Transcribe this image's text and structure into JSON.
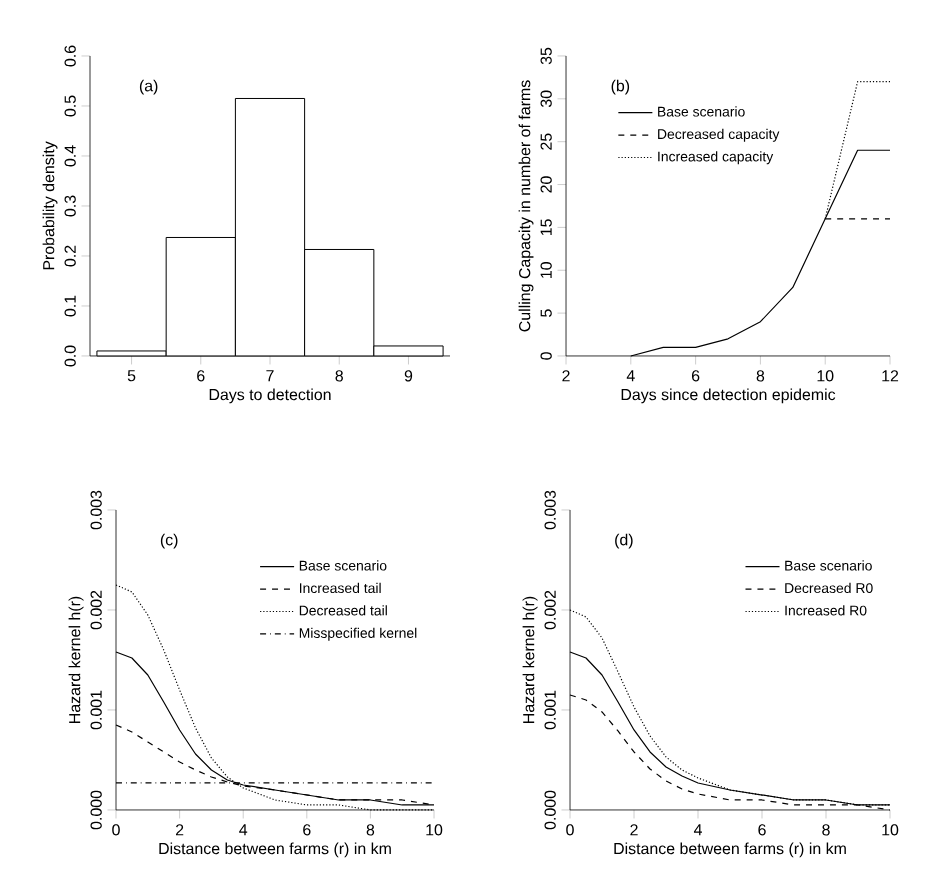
{
  "chart_data": [
    {
      "type": "histogram",
      "xlabel": "Days to detection",
      "ylabel": "Probability density",
      "annotations": [
        "(a)"
      ],
      "bins": [
        4.5,
        5.5,
        6.5,
        7.5,
        8.5,
        9.5
      ],
      "values": [
        0.01,
        0.237,
        0.515,
        0.213,
        0.02
      ],
      "color": "#ffffff",
      "xlim": [
        4.4,
        9.6
      ],
      "xticks": [
        5,
        6,
        7,
        8,
        9
      ],
      "ylim": [
        0,
        0.6
      ],
      "yticks": [
        {
          "value": 0,
          "label": "0.0"
        },
        0.1,
        0.2,
        0.3,
        0.4,
        0.5,
        0.6
      ]
    },
    {
      "type": "line",
      "xlabel": "Days since detection epidemic",
      "ylabel": "Culling Capacity in number of farms",
      "annotations": [
        "(b)"
      ],
      "series": [
        {
          "name": "Base scenario",
          "color": "#000000",
          "line_style": "solid",
          "x": [
            4,
            5,
            6,
            7,
            8,
            9,
            10,
            11,
            12
          ],
          "values": [
            0,
            1,
            1,
            2,
            4,
            8,
            16,
            24,
            24
          ]
        },
        {
          "name": "Decreased capacity",
          "color": "#000000",
          "line_style": "dashed",
          "x": [
            10,
            11,
            12
          ],
          "values": [
            16,
            16,
            16
          ]
        },
        {
          "name": "Increased capacity",
          "color": "#000000",
          "line_style": "dotted",
          "x": [
            10,
            11,
            12
          ],
          "values": [
            16,
            32,
            32
          ]
        }
      ],
      "xlim": [
        2,
        12
      ],
      "xticks": [
        2,
        4,
        6,
        8,
        10,
        12
      ],
      "ylim": [
        0,
        35
      ],
      "yticks": [
        0,
        5,
        10,
        15,
        20,
        25,
        30,
        35
      ],
      "legend": "top left"
    },
    {
      "type": "line",
      "xlabel": "Distance between farms (r) in km",
      "ylabel": "Hazard kernel h(r)",
      "annotations": [
        "(c)"
      ],
      "series": [
        {
          "name": "Base scenario",
          "color": "#000000",
          "line_style": "solid",
          "x": [
            0,
            0.5,
            1,
            1.5,
            2,
            2.5,
            3,
            3.5,
            4,
            5,
            6,
            7,
            8,
            9,
            10
          ],
          "values": [
            0.00158,
            0.00152,
            0.00135,
            0.00108,
            0.0008,
            0.00056,
            0.0004,
            0.0003,
            0.00025,
            0.0002,
            0.00015,
            0.0001,
            0.0001,
            5e-05,
            5e-05
          ]
        },
        {
          "name": "Increased tail",
          "color": "#000000",
          "line_style": "dashed",
          "x": [
            0,
            0.5,
            1,
            1.5,
            2,
            2.5,
            3,
            3.5,
            4,
            5,
            6,
            7,
            8,
            9,
            10
          ],
          "values": [
            0.00085,
            0.00078,
            0.00068,
            0.00058,
            0.00048,
            0.0004,
            0.00033,
            0.00028,
            0.00024,
            0.0002,
            0.00015,
            0.0001,
            0.0001,
            0.0001,
            5e-05
          ]
        },
        {
          "name": "Decreased tail",
          "color": "#000000",
          "line_style": "dotted",
          "x": [
            0,
            0.5,
            1,
            1.5,
            2,
            2.5,
            3,
            3.5,
            4,
            5,
            6,
            7,
            8,
            9,
            10
          ],
          "values": [
            0.00225,
            0.00218,
            0.00195,
            0.0016,
            0.0012,
            0.00082,
            0.00052,
            0.00033,
            0.00022,
            0.0001,
            5e-05,
            5e-05,
            0,
            0,
            0
          ]
        },
        {
          "name": "Misspecified kernel",
          "color": "#000000",
          "line_style": "dashdot",
          "x": [
            0,
            10
          ],
          "values": [
            0.00027,
            0.00027
          ]
        }
      ],
      "xlim": [
        0,
        10
      ],
      "xticks": [
        0,
        2,
        4,
        6,
        8,
        10
      ],
      "ylim": [
        0,
        0.003
      ],
      "yticks": [
        {
          "value": 0,
          "label": "0.000"
        },
        {
          "value": 0.001,
          "label": "0.001"
        },
        {
          "value": 0.002,
          "label": "0.002"
        },
        {
          "value": 0.003,
          "label": "0.003"
        }
      ],
      "legend": "top right"
    },
    {
      "type": "line",
      "xlabel": "Distance between farms (r) in km",
      "ylabel": "Hazard kernel h(r)",
      "annotations": [
        "(d)"
      ],
      "series": [
        {
          "name": "Base scenario",
          "color": "#000000",
          "line_style": "solid",
          "x": [
            0,
            0.5,
            1,
            1.5,
            2,
            2.5,
            3,
            3.5,
            4,
            5,
            6,
            7,
            8,
            9,
            10
          ],
          "values": [
            0.00158,
            0.00152,
            0.00135,
            0.00108,
            0.0008,
            0.00058,
            0.00043,
            0.00034,
            0.00027,
            0.0002,
            0.00015,
            0.0001,
            0.0001,
            5e-05,
            5e-05
          ]
        },
        {
          "name": "Decreased R0",
          "color": "#000000",
          "line_style": "dashed",
          "x": [
            0,
            0.5,
            1,
            1.5,
            2,
            2.5,
            3,
            3.5,
            4,
            5,
            6,
            7,
            8,
            9,
            10
          ],
          "values": [
            0.00115,
            0.0011,
            0.00098,
            0.00079,
            0.00058,
            0.00041,
            0.00029,
            0.00021,
            0.00016,
            0.0001,
            0.0001,
            5e-05,
            5e-05,
            5e-05,
            0
          ]
        },
        {
          "name": "Increased R0",
          "color": "#000000",
          "line_style": "dotted",
          "x": [
            0,
            0.5,
            1,
            1.5,
            2,
            2.5,
            3,
            3.5,
            4,
            5,
            6,
            7,
            8,
            9,
            10
          ],
          "values": [
            0.002,
            0.00193,
            0.00172,
            0.00138,
            0.00103,
            0.00074,
            0.00053,
            0.0004,
            0.00032,
            0.0002,
            0.00015,
            0.0001,
            0.0001,
            5e-05,
            5e-05
          ]
        }
      ],
      "xlim": [
        0,
        10
      ],
      "xticks": [
        0,
        2,
        4,
        6,
        8,
        10
      ],
      "ylim": [
        0,
        0.003
      ],
      "yticks": [
        {
          "value": 0,
          "label": "0.000"
        },
        {
          "value": 0.001,
          "label": "0.001"
        },
        {
          "value": 0.002,
          "label": "0.002"
        },
        {
          "value": 0.003,
          "label": "0.003"
        }
      ],
      "legend": "top right"
    }
  ]
}
